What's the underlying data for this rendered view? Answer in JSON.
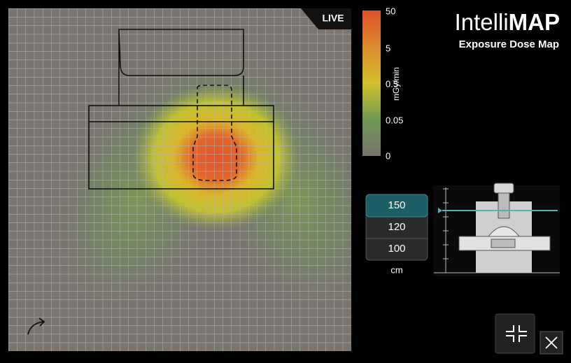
{
  "status": "LIVE",
  "colorbar": {
    "labels": [
      "50",
      "5",
      "0.5",
      "0.05",
      "0"
    ],
    "unit": "mGy/min"
  },
  "brand": {
    "name_light": "Intelli",
    "name_bold": "MAP",
    "subtitle": "Exposure Dose Map"
  },
  "height_selector": {
    "options": [
      "150",
      "120",
      "100"
    ],
    "unit": "cm"
  }
}
